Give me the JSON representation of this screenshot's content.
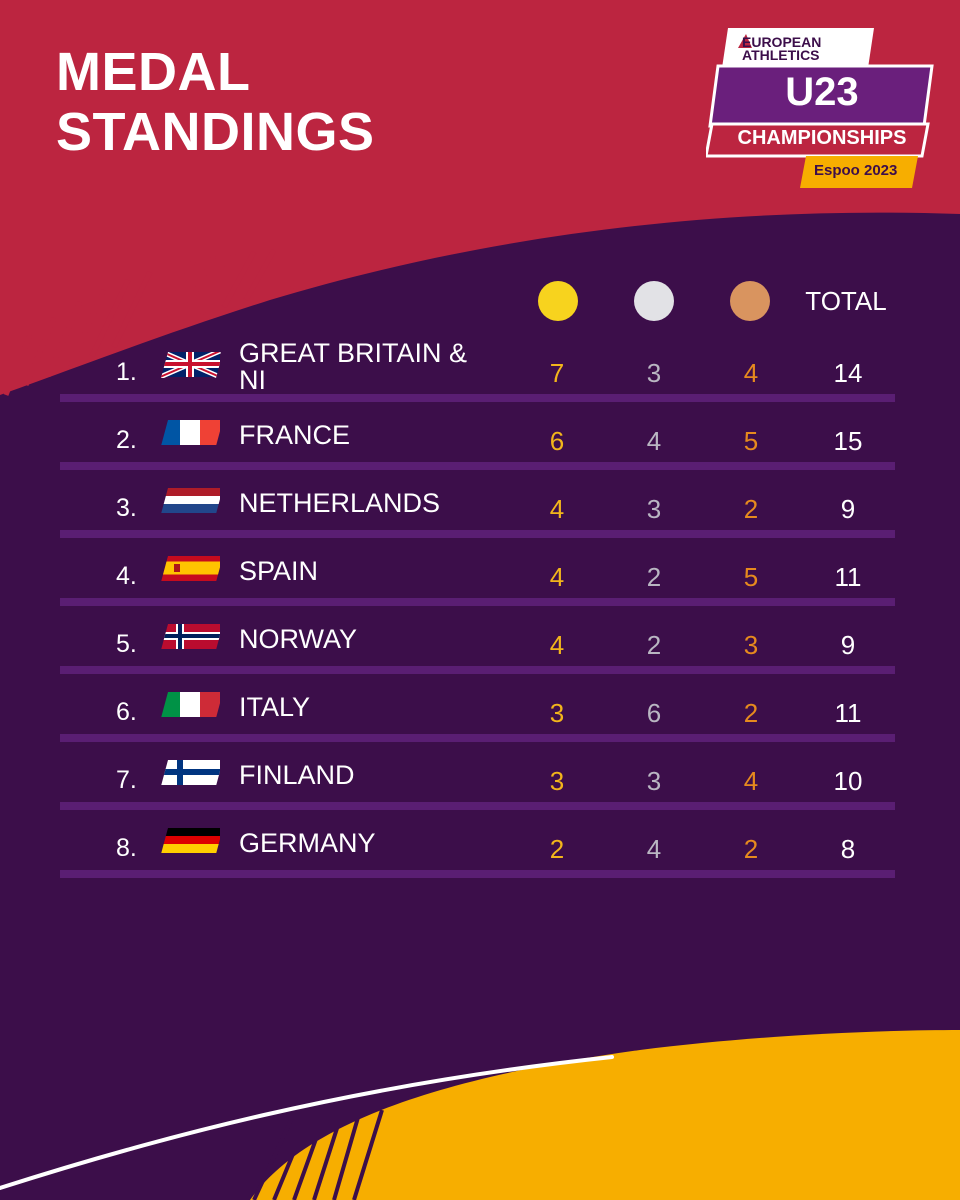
{
  "header": {
    "title_line1": "MEDAL",
    "title_line2": "STANDINGS"
  },
  "logo": {
    "brand_line1": "EUROPEAN",
    "brand_line2": "ATHLETICS",
    "event_code": "U23",
    "event_name": "CHAMPIONSHIPS",
    "edition": "Espoo 2023"
  },
  "table": {
    "columns": {
      "gold_icon": "gold-medal-icon",
      "silver_icon": "silver-medal-icon",
      "bronze_icon": "bronze-medal-icon",
      "total": "TOTAL"
    },
    "rows": [
      {
        "rank": "1.",
        "country": "GREAT BRITAIN & NI",
        "flag": "gb",
        "gold": "7",
        "silver": "3",
        "bronze": "4",
        "total": "14"
      },
      {
        "rank": "2.",
        "country": "FRANCE",
        "flag": "fr",
        "gold": "6",
        "silver": "4",
        "bronze": "5",
        "total": "15"
      },
      {
        "rank": "3.",
        "country": "NETHERLANDS",
        "flag": "nl",
        "gold": "4",
        "silver": "3",
        "bronze": "2",
        "total": "9"
      },
      {
        "rank": "4.",
        "country": "SPAIN",
        "flag": "es",
        "gold": "4",
        "silver": "2",
        "bronze": "5",
        "total": "11"
      },
      {
        "rank": "5.",
        "country": "NORWAY",
        "flag": "no",
        "gold": "4",
        "silver": "2",
        "bronze": "3",
        "total": "9"
      },
      {
        "rank": "6.",
        "country": "ITALY",
        "flag": "it",
        "gold": "3",
        "silver": "6",
        "bronze": "2",
        "total": "11"
      },
      {
        "rank": "7.",
        "country": "FINLAND",
        "flag": "fi",
        "gold": "3",
        "silver": "3",
        "bronze": "4",
        "total": "10"
      },
      {
        "rank": "8.",
        "country": "GERMANY",
        "flag": "de",
        "gold": "2",
        "silver": "4",
        "bronze": "2",
        "total": "8"
      }
    ]
  },
  "colors": {
    "crimson": "#bc2540",
    "purple": "#3c0e4a",
    "yellow": "#f7ae00",
    "gold": "#f2b51b",
    "silver": "#b9b6c2",
    "bronze": "#e68a1e"
  }
}
